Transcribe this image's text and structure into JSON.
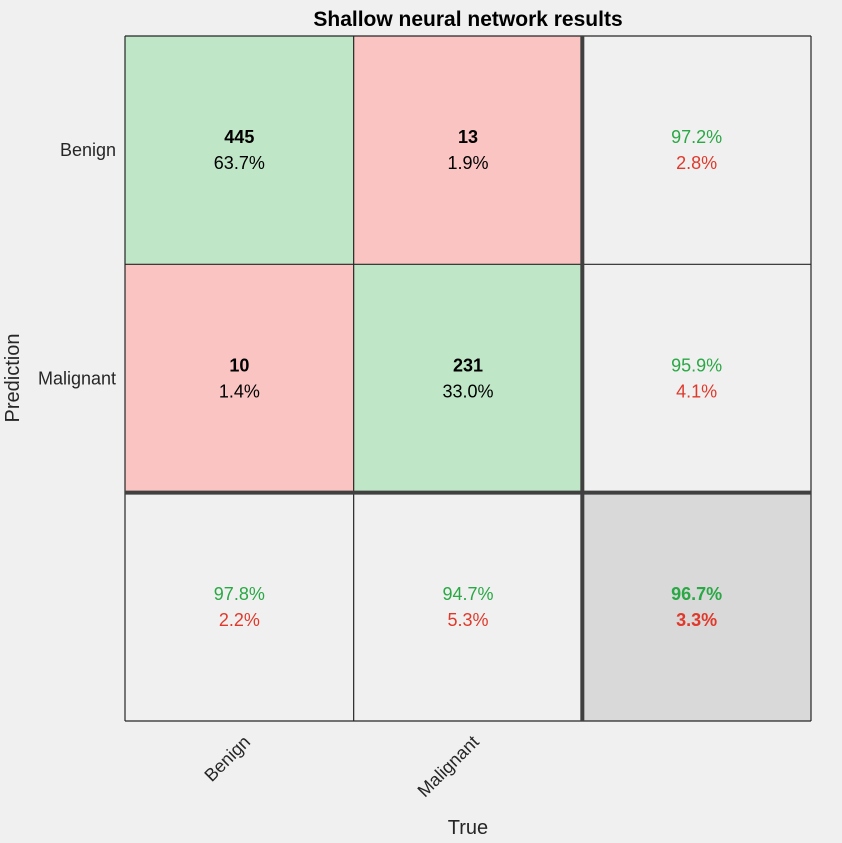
{
  "chart_data": {
    "type": "heatmap",
    "title": "Shallow neural network results",
    "xlabel": "True",
    "ylabel": "Prediction",
    "classes": [
      "Benign",
      "Malignant"
    ],
    "cells": [
      [
        {
          "count": "445",
          "percent": "63.7%"
        },
        {
          "count": "13",
          "percent": "1.9%"
        }
      ],
      [
        {
          "count": "10",
          "percent": "1.4%"
        },
        {
          "count": "231",
          "percent": "33.0%"
        }
      ]
    ],
    "row_summary": [
      {
        "correct": "97.2%",
        "incorrect": "2.8%"
      },
      {
        "correct": "95.9%",
        "incorrect": "4.1%"
      }
    ],
    "column_summary": [
      {
        "correct": "97.8%",
        "incorrect": "2.2%"
      },
      {
        "correct": "94.7%",
        "incorrect": "5.3%"
      }
    ],
    "overall": {
      "correct": "96.7%",
      "incorrect": "3.3%"
    },
    "colors": {
      "correct_fill": "#bfe6c6",
      "incorrect_fill": "#f9c4c1",
      "summary_fill": "#f0f0f0",
      "overall_fill": "#d9d9d9",
      "green_text": "#2aa845",
      "red_text": "#e0392b",
      "grid": "#262626",
      "thick_grid": "#404040"
    }
  }
}
